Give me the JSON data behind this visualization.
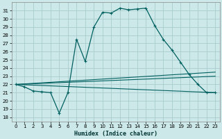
{
  "title": "",
  "xlabel": "Humidex (Indice chaleur)",
  "xlim": [
    -0.5,
    23.5
  ],
  "ylim": [
    17.5,
    32.0
  ],
  "yticks": [
    18,
    19,
    20,
    21,
    22,
    23,
    24,
    25,
    26,
    27,
    28,
    29,
    30,
    31
  ],
  "xticks": [
    0,
    1,
    2,
    3,
    4,
    5,
    6,
    7,
    8,
    9,
    10,
    11,
    12,
    13,
    14,
    15,
    16,
    17,
    18,
    19,
    20,
    21,
    22,
    23
  ],
  "background_color": "#cce8e8",
  "grid_color": "#aacccc",
  "line_color": "#006060",
  "main_series_x": [
    0,
    1,
    2,
    3,
    4,
    5,
    6,
    7,
    8,
    9,
    10,
    11,
    12,
    13,
    14,
    15,
    16,
    17,
    18,
    19,
    20,
    21,
    22,
    23
  ],
  "main_series_y": [
    22.0,
    21.7,
    21.2,
    21.1,
    21.0,
    18.5,
    21.0,
    27.5,
    24.8,
    29.0,
    30.8,
    30.7,
    31.3,
    31.1,
    31.2,
    31.3,
    29.2,
    27.5,
    26.2,
    24.7,
    23.2,
    22.0,
    21.0,
    21.0
  ],
  "flat_lines": [
    {
      "x": [
        0,
        23
      ],
      "y": [
        22.0,
        21.0
      ]
    },
    {
      "x": [
        0,
        23
      ],
      "y": [
        22.0,
        23.0
      ]
    },
    {
      "x": [
        0,
        23
      ],
      "y": [
        22.0,
        23.5
      ]
    }
  ]
}
